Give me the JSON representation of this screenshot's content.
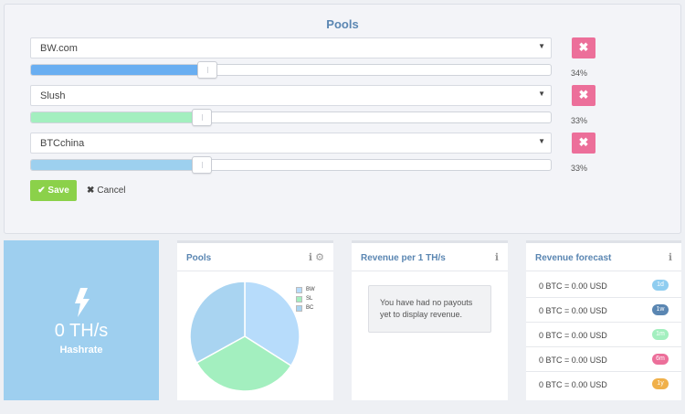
{
  "pools_panel": {
    "title": "Pools",
    "pools": [
      {
        "name": "BW.com",
        "percent": "34%",
        "share": 0.34,
        "color": "#69aef1"
      },
      {
        "name": "Slush",
        "percent": "33%",
        "share": 0.33,
        "color": "#a3efbf"
      },
      {
        "name": "BTCchina",
        "percent": "33%",
        "share": 0.33,
        "color": "#9dd0ef"
      }
    ],
    "save_label": "Save",
    "cancel_label": "Cancel",
    "remove_glyph": "✖"
  },
  "hashrate": {
    "value": "0 TH/s",
    "label": "Hashrate",
    "icon": "bolt-icon",
    "background": "#9ecfef"
  },
  "pools_card": {
    "title": "Pools",
    "icons": [
      "info-icon",
      "gear-icon"
    ],
    "legend": [
      {
        "label": "BW",
        "color": "#b7dcfb"
      },
      {
        "label": "SL",
        "color": "#a3efbf"
      },
      {
        "label": "BC",
        "color": "#a9d4f1"
      }
    ]
  },
  "revenue_card": {
    "title": "Revenue per 1 TH/s",
    "message": "You have had no payouts yet to display revenue.",
    "icons": [
      "info-icon"
    ]
  },
  "forecast_card": {
    "title": "Revenue forecast",
    "icons": [
      "info-icon"
    ],
    "rows": [
      {
        "text": "0 BTC = 0.00 USD",
        "badge": "1d",
        "color": "#8fcdf0"
      },
      {
        "text": "0 BTC = 0.00 USD",
        "badge": "1w",
        "color": "#5a86b2"
      },
      {
        "text": "0 BTC = 0.00 USD",
        "badge": "1m",
        "color": "#a3efbf"
      },
      {
        "text": "0 BTC = 0.00 USD",
        "badge": "6m",
        "color": "#ec6f9a"
      },
      {
        "text": "0 BTC = 0.00 USD",
        "badge": "1y",
        "color": "#f0b04a"
      }
    ]
  },
  "chart_data": {
    "type": "pie",
    "categories": [
      "BW",
      "SL",
      "BC"
    ],
    "values": [
      34,
      33,
      33
    ],
    "colors": [
      "#b7dcfb",
      "#a3efbf",
      "#a9d4f1"
    ]
  }
}
